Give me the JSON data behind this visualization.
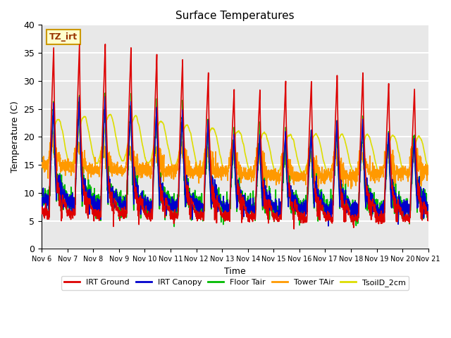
{
  "title": "Surface Temperatures",
  "xlabel": "Time",
  "ylabel": "Temperature (C)",
  "ylim": [
    0,
    40
  ],
  "background_color": "#e8e8e8",
  "grid_color": "white",
  "xtick_labels": [
    "Nov 6",
    "Nov 7",
    "Nov 8",
    "Nov 9",
    "Nov 10",
    "Nov 11",
    "Nov 12",
    "Nov 13",
    "Nov 14",
    "Nov 15",
    "Nov 16",
    "Nov 17",
    "Nov 18",
    "Nov 19",
    "Nov 20",
    "Nov 21"
  ],
  "annotation_text": "TZ_irt",
  "annotation_color": "#993300",
  "annotation_bg": "#ffffcc",
  "annotation_border": "#cc9900",
  "legend_entries": [
    "IRT Ground",
    "IRT Canopy",
    "Floor Tair",
    "Tower TAir",
    "TsoilD_2cm"
  ],
  "legend_colors": [
    "#dd0000",
    "#0000cc",
    "#00bb00",
    "#ff9900",
    "#dddd00"
  ],
  "line_width": 1.2,
  "n_days": 15,
  "pts_per_day": 144
}
